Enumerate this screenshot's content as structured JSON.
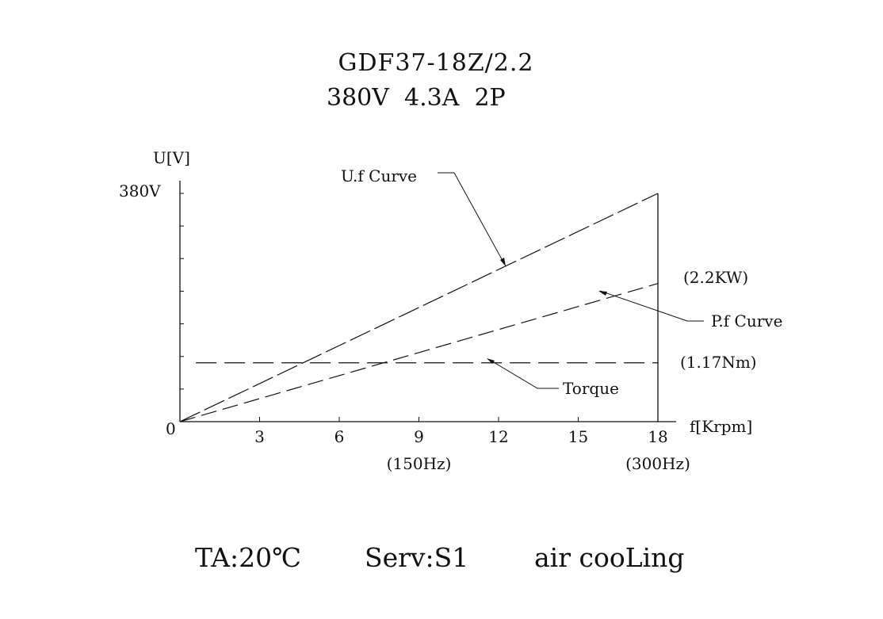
{
  "header": {
    "model": "GDF37-18Z/2.2",
    "voltage": "380V",
    "current": "4.3A",
    "poles": "2P"
  },
  "chart_data": {
    "type": "line",
    "ylabel": "U[V]",
    "xlabel": "f[Krpm]",
    "y_tick_label": "380V",
    "origin_label": "0",
    "xlim": [
      0,
      18
    ],
    "ylim": [
      0,
      380
    ],
    "x_ticks": [
      3,
      6,
      9,
      12,
      15,
      18
    ],
    "x_sub_labels": [
      {
        "x": 9,
        "label": "(150Hz)"
      },
      {
        "x": 18,
        "label": "(300Hz)"
      }
    ],
    "series": [
      {
        "name": "U.f Curve",
        "x": [
          0,
          18
        ],
        "y": [
          0,
          380
        ],
        "style": "dashed"
      },
      {
        "name": "P.f Curve",
        "x": [
          0,
          18
        ],
        "y": [
          0,
          230
        ],
        "style": "dashed",
        "end_label": "(2.2KW)"
      },
      {
        "name": "Torque",
        "x": [
          0.6,
          18
        ],
        "y": [
          98,
          98
        ],
        "style": "dashed",
        "end_label": "(1.17Nm)"
      }
    ],
    "grid": false
  },
  "footer": {
    "ambient": "TA:20℃",
    "service": "Serv:S1",
    "cooling": "air cooLing"
  }
}
